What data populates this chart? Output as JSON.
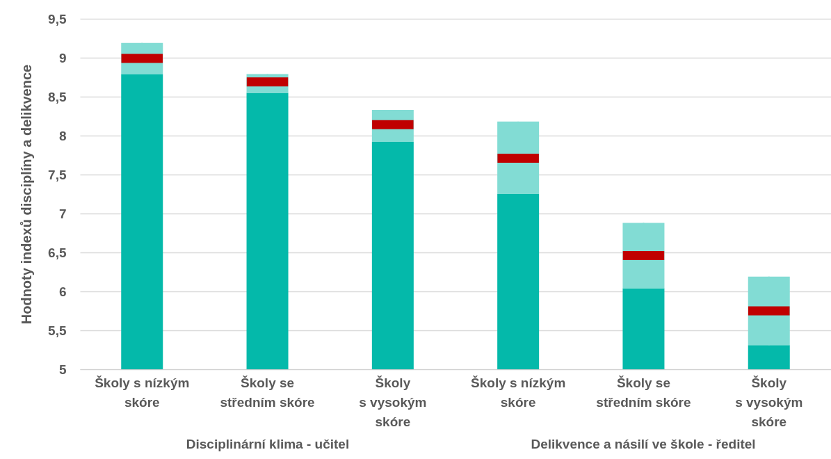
{
  "chart_data": {
    "type": "bar",
    "ylabel": "Hodnoty indexů disciplíny a delikvence",
    "categories": [
      "Školy s nízkým\nskóre",
      "Školy se\nstředním skóre",
      "Školy\ns vysokým\nskóre",
      "Školy s nízkým\nskóre",
      "Školy se\nstředním skóre",
      "Školy\ns vysokým\nskóre"
    ],
    "series": [
      {
        "color": "#04b9aa",
        "values": [
          8.79,
          8.55,
          7.92,
          7.25,
          6.04,
          5.31
        ]
      },
      {
        "type": "box",
        "color": "#82dcd4",
        "boxes": [
          {
            "low": 8.79,
            "q1": 8.79,
            "median": 8.99,
            "q3": 9.19,
            "high": 9.19
          },
          {
            "low": 8.55,
            "q1": 8.55,
            "median": 8.69,
            "q3": 8.79,
            "high": 8.79
          },
          {
            "low": 7.92,
            "q1": 7.92,
            "median": 8.14,
            "q3": 8.33,
            "high": 8.33
          },
          {
            "low": 7.25,
            "q1": 7.25,
            "median": 7.71,
            "q3": 8.18,
            "high": 8.18
          },
          {
            "low": 6.04,
            "q1": 6.04,
            "median": 6.46,
            "q3": 6.88,
            "high": 6.88
          },
          {
            "low": 5.31,
            "q1": 5.31,
            "median": 5.75,
            "q3": 6.19,
            "high": 6.19
          }
        ]
      }
    ],
    "ylim": [
      5,
      9.5
    ],
    "yticks": [
      5,
      {
        "value": 5.5,
        "label": "5,5"
      },
      6,
      {
        "value": 6.5,
        "label": "6,5"
      },
      7,
      {
        "value": 7.5,
        "label": "7,5"
      },
      8,
      {
        "value": 8.5,
        "label": "8,5"
      },
      9,
      {
        "value": 9.5,
        "label": "9,5"
      }
    ],
    "grid": "y",
    "annotations": [
      "Disciplinární klima - učitel",
      "Delikvence a násilí ve škole - ředitel"
    ]
  }
}
